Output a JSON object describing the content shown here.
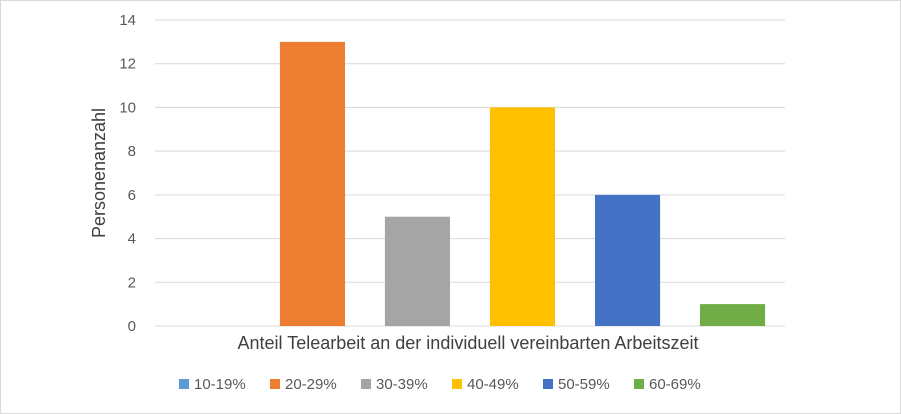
{
  "chart_data": {
    "type": "bar",
    "title": "",
    "xlabel": "Anteil Telearbeit an der individuell vereinbarten Arbeitszeit",
    "ylabel": "Personenanzahl",
    "ylim": [
      0,
      14
    ],
    "yticks": [
      0,
      2,
      4,
      6,
      8,
      10,
      12,
      14
    ],
    "grid": true,
    "legend_position": "bottom",
    "series": [
      {
        "name": "10-19%",
        "color": "#5b9bd5",
        "values": [
          0
        ]
      },
      {
        "name": "20-29%",
        "color": "#ed7d31",
        "values": [
          13
        ]
      },
      {
        "name": "30-39%",
        "color": "#a5a5a5",
        "values": [
          5
        ]
      },
      {
        "name": "40-49%",
        "color": "#ffc000",
        "values": [
          10
        ]
      },
      {
        "name": "50-59%",
        "color": "#4472c4",
        "values": [
          6
        ]
      },
      {
        "name": "60-69%",
        "color": "#70ad47",
        "values": [
          1
        ]
      }
    ]
  }
}
